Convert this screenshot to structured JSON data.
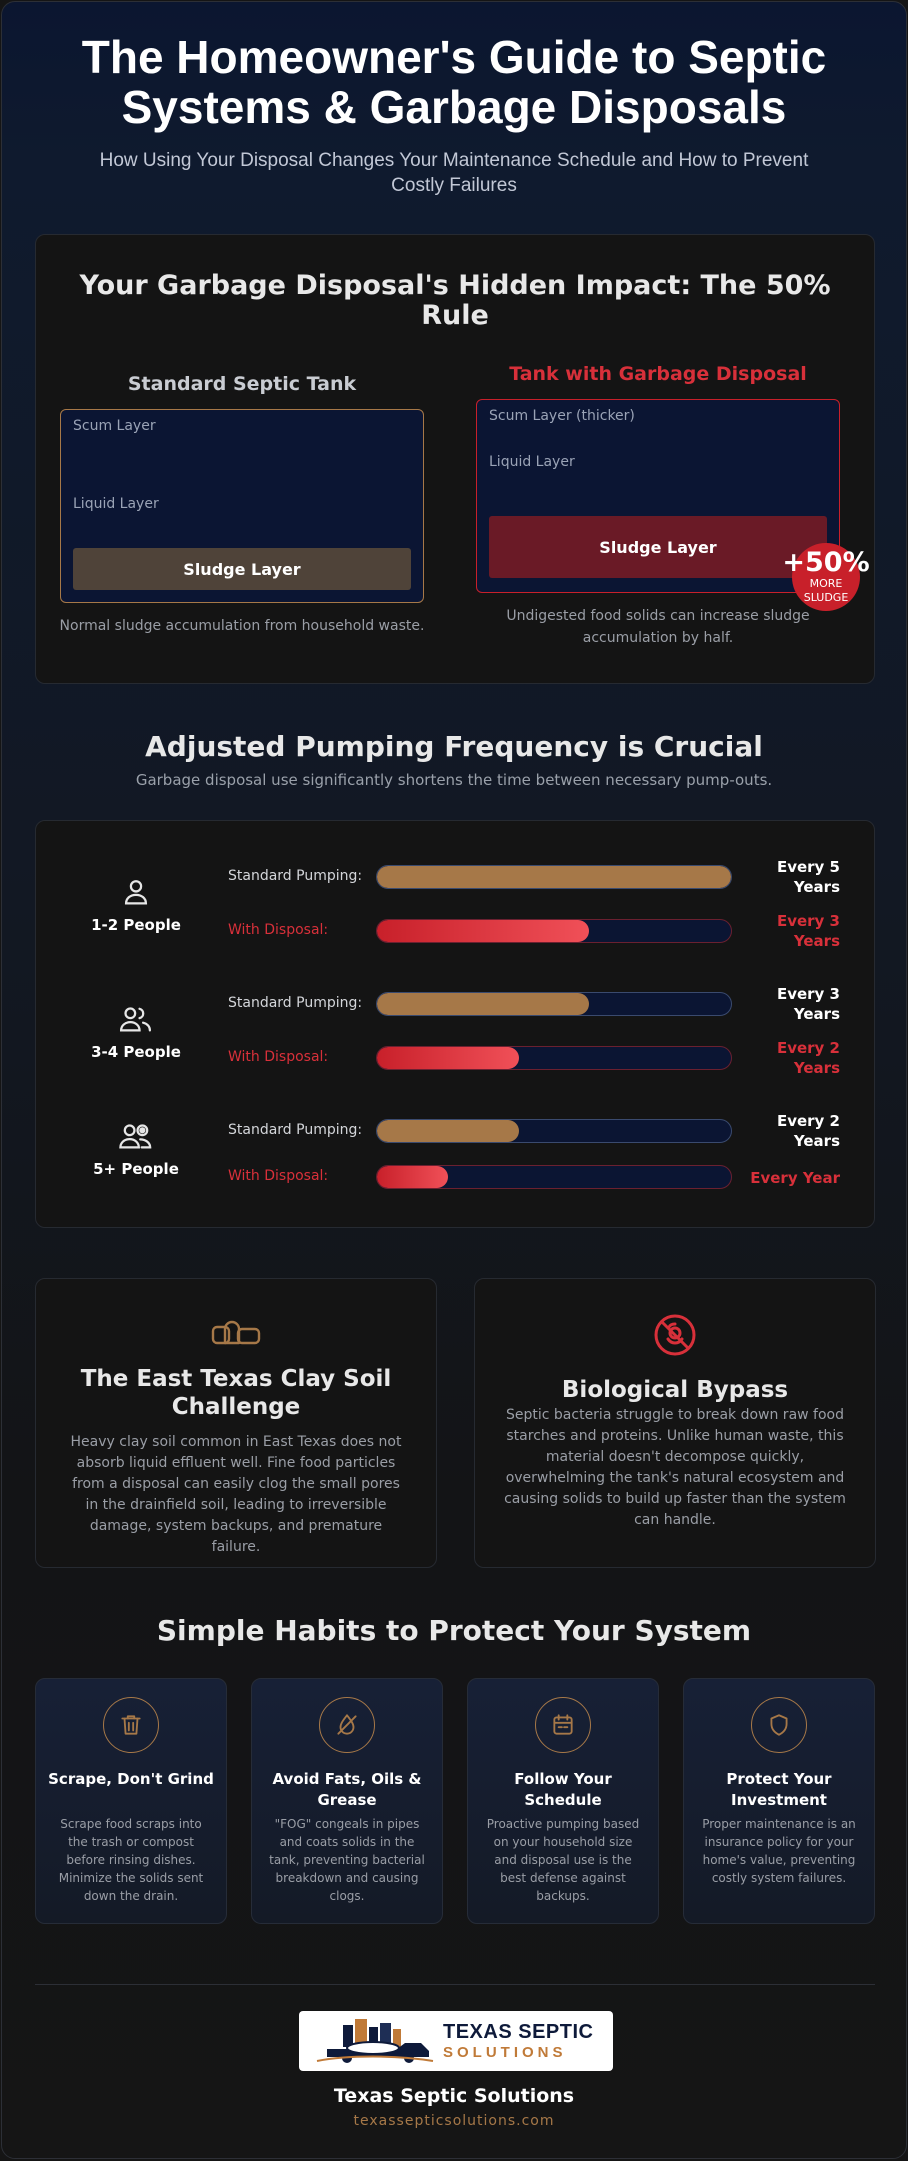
{
  "hero": {
    "title": "The Homeowner's Guide to Septic Systems & Garbage Disposals",
    "subtitle": "How Using Your Disposal Changes Your Maintenance Schedule and How to Prevent Costly Failures"
  },
  "impact": {
    "title": "Your Garbage Disposal's Hidden Impact: The 50% Rule",
    "standard": {
      "heading": "Standard Septic Tank",
      "scum": "Scum Layer",
      "liquid": "Liquid Layer",
      "sludge": "Sludge Layer",
      "caption": "Normal sludge accumulation from household waste."
    },
    "disposal": {
      "heading": "Tank with Garbage Disposal",
      "scum": "Scum Layer (thicker)",
      "liquid": "Liquid Layer",
      "sludge": "Sludge Layer",
      "caption": "Undigested food solids can increase sludge accumulation by half."
    },
    "badge_value": "+50%",
    "badge_label_1": "MORE",
    "badge_label_2": "SLUDGE"
  },
  "pumping": {
    "title": "Adjusted Pumping Frequency is Crucial",
    "subtitle": "Garbage disposal use significantly shortens the time between necessary pump-outs.",
    "standard_label": "Standard Pumping:",
    "disposal_label": "With Disposal:",
    "groups": [
      {
        "people": "1-2 People",
        "standard_value": "Every 5 Years",
        "standard_fill": 1.0,
        "disposal_value": "Every 3 Years",
        "disposal_fill": 0.6
      },
      {
        "people": "3-4 People",
        "standard_value": "Every 3 Years",
        "standard_fill": 0.6,
        "disposal_value": "Every 2 Years",
        "disposal_fill": 0.4
      },
      {
        "people": "5+ People",
        "standard_value": "Every 2 Years",
        "standard_fill": 0.4,
        "disposal_value": "Every Year",
        "disposal_fill": 0.2
      }
    ]
  },
  "info": {
    "clay": {
      "title": "The East Texas Clay Soil Challenge",
      "text": "Heavy clay soil common in East Texas does not absorb liquid effluent well. Fine food particles from a disposal can easily clog the small pores in the drainfield soil, leading to irreversible damage, system backups, and premature failure."
    },
    "bio": {
      "title": "Biological Bypass",
      "text": "Septic bacteria struggle to break down raw food starches and proteins. Unlike human waste, this material doesn't decompose quickly, overwhelming the tank's natural ecosystem and causing solids to build up faster than the system can handle."
    }
  },
  "habits": {
    "title": "Simple Habits to Protect Your System",
    "items": [
      {
        "title": "Scrape, Don't Grind",
        "text": "Scrape food scraps into the trash or compost before rinsing dishes. Minimize the solids sent down the drain."
      },
      {
        "title": "Avoid Fats, Oils & Grease",
        "text": "\"FOG\" congeals in pipes and coats solids in the tank, preventing bacterial breakdown and causing clogs."
      },
      {
        "title": "Follow Your Schedule",
        "text": "Proactive pumping based on your household size and disposal use is the best defense against backups."
      },
      {
        "title": "Protect Your Investment",
        "text": "Proper maintenance is an insurance policy for your home's value, preventing costly system failures."
      }
    ]
  },
  "footer": {
    "logo_line1": "TEXAS SEPTIC",
    "logo_line2": "SOLUTIONS",
    "company": "Texas Septic Solutions",
    "url": "texassepticsolutions.com"
  },
  "colors": {
    "accent_copper": "#a67848",
    "accent_red": "#c8202a",
    "tank_blue": "#0b1533"
  }
}
